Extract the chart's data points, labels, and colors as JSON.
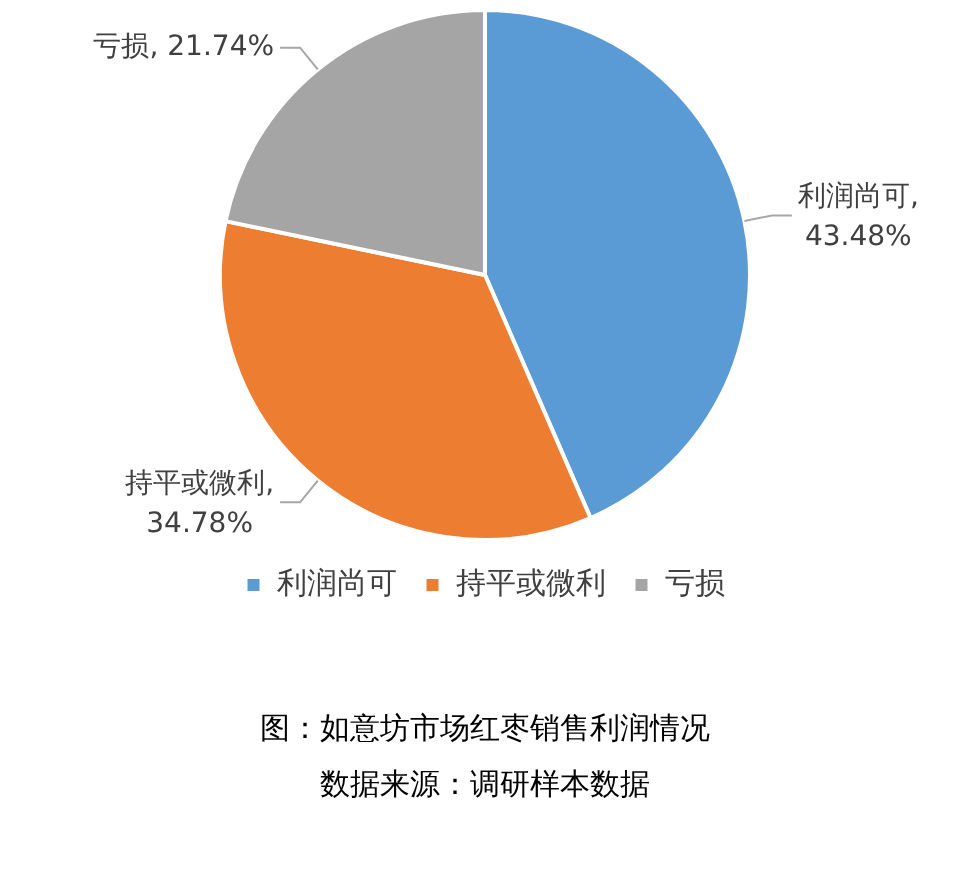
{
  "chart_data": {
    "type": "pie",
    "title": "图：如意坊市场红枣销售利润情况",
    "categories": [
      "利润尚可",
      "持平或微利",
      "亏损"
    ],
    "values": [
      43.48,
      34.78,
      21.74
    ],
    "colors": [
      "#5b9bd5",
      "#ed7d31",
      "#a5a5a5"
    ],
    "value_labels": [
      "利润尚可, 43.48%",
      "持平或微利, 34.78%",
      "亏损, 21.74%"
    ],
    "legend": "bottom",
    "annotations": [
      "数据来源：调研样本数据"
    ]
  }
}
